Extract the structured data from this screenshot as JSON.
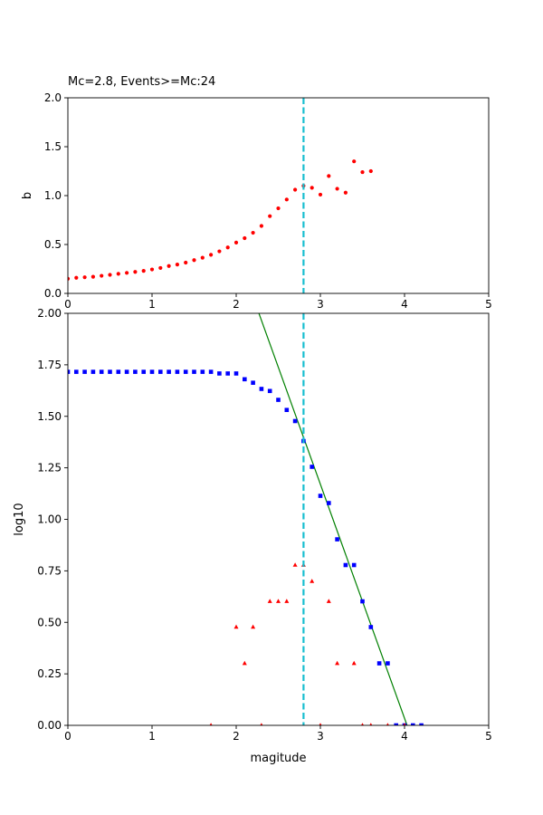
{
  "chart_data": [
    {
      "type": "scatter",
      "title": "Mc=2.8, Events>=Mc:24",
      "xlabel": "",
      "ylabel": "b",
      "xlim": [
        0,
        5
      ],
      "ylim": [
        0,
        2.0
      ],
      "xticks": [
        0,
        1,
        2,
        3,
        4,
        5
      ],
      "yticks": [
        0.0,
        0.5,
        1.0,
        1.5,
        2.0
      ],
      "xtick_labels": [
        "0",
        "1",
        "2",
        "3",
        "4",
        "5"
      ],
      "ytick_labels": [
        "0.0",
        "0.5",
        "1.0",
        "1.5",
        "2.0"
      ],
      "mc_line": 2.8,
      "mc_line_color": "#17becf",
      "series": [
        {
          "marker": "circle",
          "color": "#ff0000",
          "x": [
            0.0,
            0.1,
            0.2,
            0.3,
            0.4,
            0.5,
            0.6,
            0.7,
            0.8,
            0.9,
            1.0,
            1.1,
            1.2,
            1.3,
            1.4,
            1.5,
            1.6,
            1.7,
            1.8,
            1.9,
            2.0,
            2.1,
            2.2,
            2.3,
            2.4,
            2.5,
            2.6,
            2.7,
            2.8,
            2.9,
            3.0,
            3.1,
            3.2,
            3.3,
            3.4,
            3.5,
            3.6
          ],
          "y": [
            0.15,
            0.16,
            0.165,
            0.17,
            0.18,
            0.19,
            0.2,
            0.21,
            0.22,
            0.23,
            0.245,
            0.26,
            0.28,
            0.295,
            0.315,
            0.34,
            0.365,
            0.395,
            0.43,
            0.47,
            0.52,
            0.565,
            0.62,
            0.69,
            0.79,
            0.87,
            0.96,
            1.06,
            1.1,
            1.08,
            1.01,
            1.2,
            1.07,
            1.03,
            1.35,
            1.24,
            1.25
          ]
        }
      ]
    },
    {
      "type": "scatter",
      "title": "",
      "xlabel": "magitude",
      "ylabel": "log10",
      "xlim": [
        0,
        5
      ],
      "ylim": [
        0,
        2.0
      ],
      "xticks": [
        0,
        1,
        2,
        3,
        4,
        5
      ],
      "yticks": [
        0.0,
        0.25,
        0.5,
        0.75,
        1.0,
        1.25,
        1.5,
        1.75,
        2.0
      ],
      "xtick_labels": [
        "0",
        "1",
        "2",
        "3",
        "4",
        "5"
      ],
      "ytick_labels": [
        "0.00",
        "0.25",
        "0.50",
        "0.75",
        "1.00",
        "1.25",
        "1.50",
        "1.75",
        "2.00"
      ],
      "mc_line": 2.8,
      "mc_line_color": "#17becf",
      "fit_line": {
        "x": [
          2.27,
          4.03
        ],
        "y": [
          2.0,
          0.0
        ],
        "color": "#008000"
      },
      "series": [
        {
          "marker": "square",
          "color": "#0000ff",
          "x": [
            0.0,
            0.1,
            0.2,
            0.3,
            0.4,
            0.5,
            0.6,
            0.7,
            0.8,
            0.9,
            1.0,
            1.1,
            1.2,
            1.3,
            1.4,
            1.5,
            1.6,
            1.7,
            1.8,
            1.9,
            2.0,
            2.1,
            2.2,
            2.3,
            2.4,
            2.5,
            2.6,
            2.7,
            2.8,
            2.9,
            3.0,
            3.1,
            3.2,
            3.3,
            3.4,
            3.5,
            3.6,
            3.7,
            3.8,
            3.9,
            4.0,
            4.1,
            4.2
          ],
          "y": [
            1.716,
            1.716,
            1.716,
            1.716,
            1.716,
            1.716,
            1.716,
            1.716,
            1.716,
            1.716,
            1.716,
            1.716,
            1.716,
            1.716,
            1.716,
            1.716,
            1.716,
            1.716,
            1.708,
            1.708,
            1.708,
            1.68,
            1.663,
            1.633,
            1.623,
            1.58,
            1.531,
            1.477,
            1.38,
            1.255,
            1.114,
            1.079,
            0.903,
            0.778,
            0.778,
            0.602,
            0.477,
            0.301,
            0.301,
            0.0,
            0.0,
            0.0,
            0.0
          ]
        },
        {
          "marker": "triangle",
          "color": "#ff0000",
          "x": [
            1.7,
            2.0,
            2.1,
            2.2,
            2.3,
            2.4,
            2.5,
            2.6,
            2.7,
            2.8,
            2.9,
            3.0,
            3.1,
            3.2,
            3.4,
            3.5,
            3.6,
            3.8,
            4.0
          ],
          "y": [
            0.0,
            0.477,
            0.301,
            0.477,
            0.0,
            0.602,
            0.602,
            0.602,
            0.778,
            0.778,
            0.699,
            0.0,
            0.602,
            0.301,
            0.301,
            0.0,
            0.0,
            0.0,
            0.0
          ]
        }
      ]
    }
  ]
}
